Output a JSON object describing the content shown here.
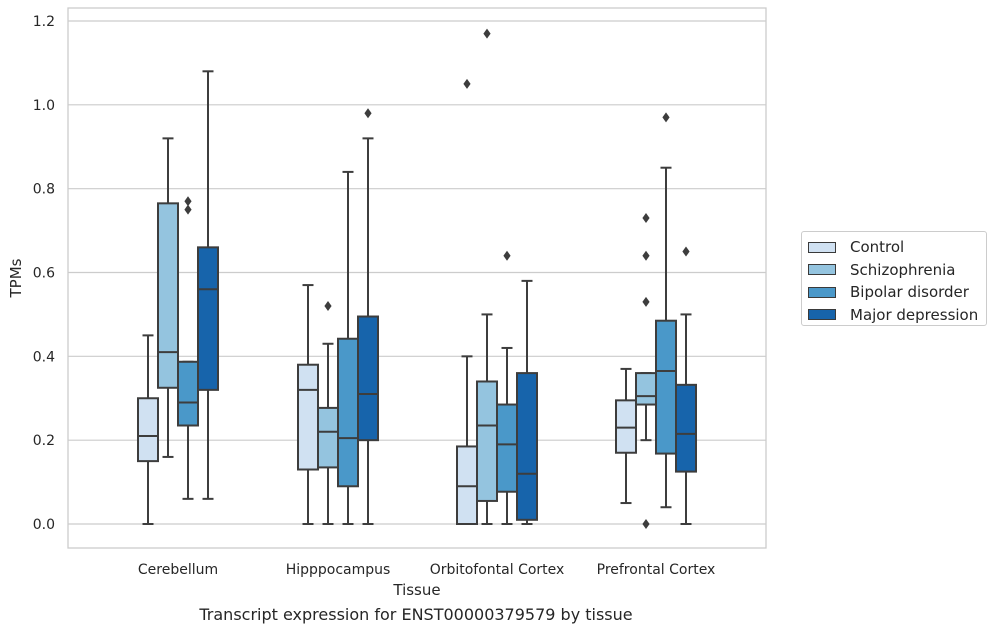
{
  "chart_data": {
    "type": "box",
    "caption": "Transcript expression for ENST00000379579 by tissue",
    "xlabel": "Tissue",
    "ylabel": "TPMs",
    "ylim": [
      -0.058,
      1.235
    ],
    "yticks": [
      "0.0",
      "0.2",
      "0.4",
      "0.6",
      "0.8",
      "1.0",
      "1.2"
    ],
    "ytick_values": [
      0.0,
      0.2,
      0.4,
      0.6,
      0.8,
      1.0,
      1.2
    ],
    "grid": "horizontal",
    "legend_position": "right",
    "categories": [
      "Cerebellum",
      "Hipppocampus",
      "Orbitofontal Cortex",
      "Prefrontal Cortex"
    ],
    "series": [
      {
        "name": "Control",
        "color": "#d0e1f2",
        "boxes": [
          {
            "whisker_low": 0.0,
            "q1": 0.15,
            "median": 0.21,
            "q3": 0.3,
            "whisker_high": 0.45,
            "outliers": []
          },
          {
            "whisker_low": 0.0,
            "q1": 0.13,
            "median": 0.32,
            "q3": 0.38,
            "whisker_high": 0.57,
            "outliers": []
          },
          {
            "whisker_low": 0.0,
            "q1": 0.0,
            "median": 0.09,
            "q3": 0.185,
            "whisker_high": 0.4,
            "outliers": [
              1.05
            ]
          },
          {
            "whisker_low": 0.05,
            "q1": 0.17,
            "median": 0.23,
            "q3": 0.295,
            "whisker_high": 0.37,
            "outliers": []
          }
        ]
      },
      {
        "name": "Schizophrenia",
        "color": "#94c4df",
        "boxes": [
          {
            "whisker_low": 0.16,
            "q1": 0.325,
            "median": 0.41,
            "q3": 0.765,
            "whisker_high": 0.92,
            "outliers": []
          },
          {
            "whisker_low": 0.0,
            "q1": 0.135,
            "median": 0.22,
            "q3": 0.277,
            "whisker_high": 0.43,
            "outliers": [
              0.52
            ]
          },
          {
            "whisker_low": 0.0,
            "q1": 0.055,
            "median": 0.235,
            "q3": 0.34,
            "whisker_high": 0.5,
            "outliers": [
              1.17
            ]
          },
          {
            "whisker_low": 0.2,
            "q1": 0.285,
            "median": 0.305,
            "q3": 0.36,
            "whisker_high": 0.36,
            "outliers": [
              0.0,
              0.53,
              0.64,
              0.73
            ]
          }
        ]
      },
      {
        "name": "Bipolar disorder",
        "color": "#4a98c9",
        "boxes": [
          {
            "whisker_low": 0.06,
            "q1": 0.235,
            "median": 0.29,
            "q3": 0.387,
            "whisker_high": 0.387,
            "outliers": [
              0.75,
              0.77
            ]
          },
          {
            "whisker_low": 0.0,
            "q1": 0.09,
            "median": 0.205,
            "q3": 0.442,
            "whisker_high": 0.84,
            "outliers": []
          },
          {
            "whisker_low": 0.0,
            "q1": 0.077,
            "median": 0.19,
            "q3": 0.285,
            "whisker_high": 0.42,
            "outliers": [
              0.64
            ]
          },
          {
            "whisker_low": 0.04,
            "q1": 0.168,
            "median": 0.365,
            "q3": 0.485,
            "whisker_high": 0.85,
            "outliers": [
              0.97
            ]
          }
        ]
      },
      {
        "name": "Major depression",
        "color": "#1764ab",
        "boxes": [
          {
            "whisker_low": 0.06,
            "q1": 0.32,
            "median": 0.56,
            "q3": 0.66,
            "whisker_high": 1.08,
            "outliers": []
          },
          {
            "whisker_low": 0.0,
            "q1": 0.2,
            "median": 0.31,
            "q3": 0.495,
            "whisker_high": 0.92,
            "outliers": [
              0.98
            ]
          },
          {
            "whisker_low": 0.0,
            "q1": 0.01,
            "median": 0.12,
            "q3": 0.36,
            "whisker_high": 0.58,
            "outliers": []
          },
          {
            "whisker_low": 0.0,
            "q1": 0.125,
            "median": 0.215,
            "q3": 0.332,
            "whisker_high": 0.5,
            "outliers": [
              0.65
            ]
          }
        ]
      }
    ]
  }
}
